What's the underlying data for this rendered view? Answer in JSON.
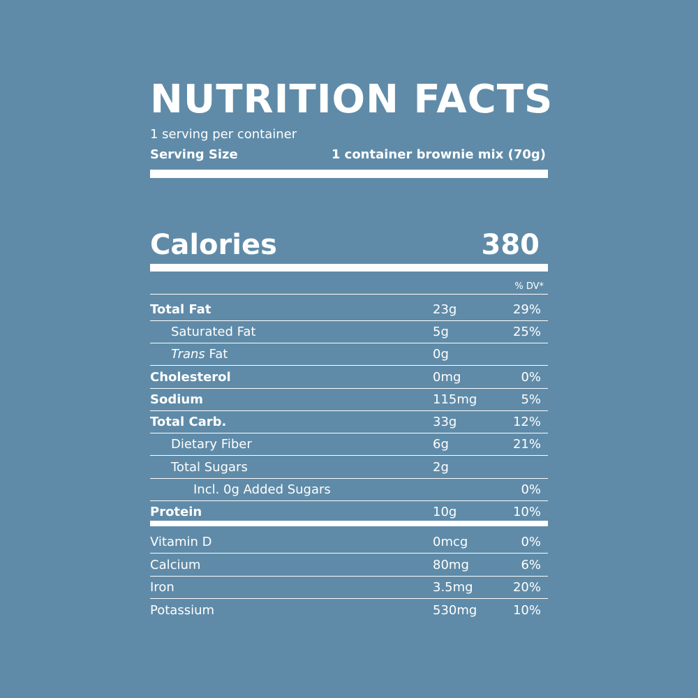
{
  "title": "NUTRITION  FACTS",
  "servings_per_container": "1 serving per container",
  "serving_size_label": "Serving Size",
  "serving_size_value": "1 container brownie mix (70g)",
  "calories_label": "Calories",
  "calories_value": "380",
  "dv_header": "% DV*",
  "nutrients": [
    {
      "name": "Total Fat",
      "amount": "23g",
      "dv": "29%"
    },
    {
      "name": "Saturated Fat",
      "amount": "5g",
      "dv": "25%"
    },
    {
      "name_italic": "Trans",
      "name_rest": " Fat",
      "amount": "0g",
      "dv": ""
    },
    {
      "name": "Cholesterol",
      "amount": "0mg",
      "dv": "0%"
    },
    {
      "name": "Sodium",
      "amount": "115mg",
      "dv": "5%"
    },
    {
      "name": "Total Carb.",
      "amount": "33g",
      "dv": "12%"
    },
    {
      "name": "Dietary Fiber",
      "amount": "6g",
      "dv": "21%"
    },
    {
      "name": "Total Sugars",
      "amount": "2g",
      "dv": ""
    },
    {
      "name": "Incl. 0g Added Sugars",
      "amount": "",
      "dv": "0%"
    },
    {
      "name": "Protein",
      "amount": "10g",
      "dv": "10%"
    }
  ],
  "vitamins": [
    {
      "name": "Vitamin D",
      "amount": "0mcg",
      "dv": "0%"
    },
    {
      "name": "Calcium",
      "amount": "80mg",
      "dv": "6%"
    },
    {
      "name": "Iron",
      "amount": "3.5mg",
      "dv": "20%"
    },
    {
      "name": "Potassium",
      "amount": "530mg",
      "dv": "10%"
    }
  ],
  "colors": {
    "background": "#5f8ba8",
    "foreground": "#ffffff"
  }
}
